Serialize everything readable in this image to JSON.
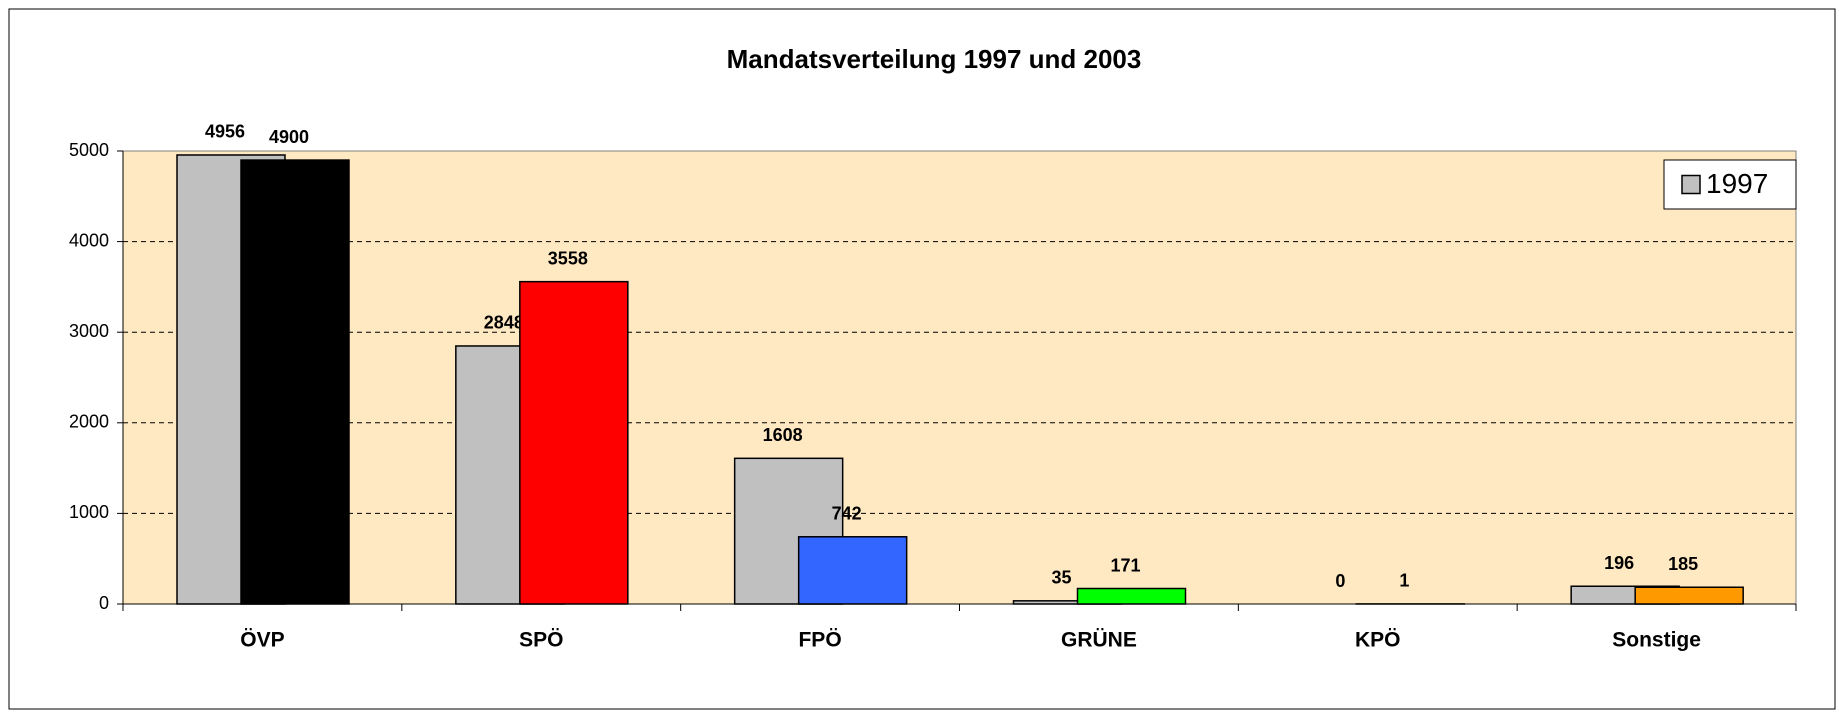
{
  "chart_data": {
    "type": "bar",
    "title": "Mandatsverteilung 1997 und 2003",
    "categories": [
      "ÖVP",
      "SPÖ",
      "FPÖ",
      "GRÜNE",
      "KPÖ",
      "Sonstige"
    ],
    "series": [
      {
        "name": "1997",
        "color": "#c0c0c0",
        "values": [
          4956,
          2848,
          1608,
          35,
          0,
          196
        ]
      },
      {
        "colors": [
          "#000000",
          "#ff0000",
          "#3366ff",
          "#00ff00",
          "#993366",
          "#ff9900"
        ],
        "values": [
          4900,
          3558,
          742,
          171,
          1,
          185
        ]
      }
    ],
    "ylim": [
      0,
      5000
    ],
    "yticks": [
      0,
      1000,
      2000,
      3000,
      4000,
      5000
    ],
    "grid": true,
    "legend": "upper right"
  }
}
